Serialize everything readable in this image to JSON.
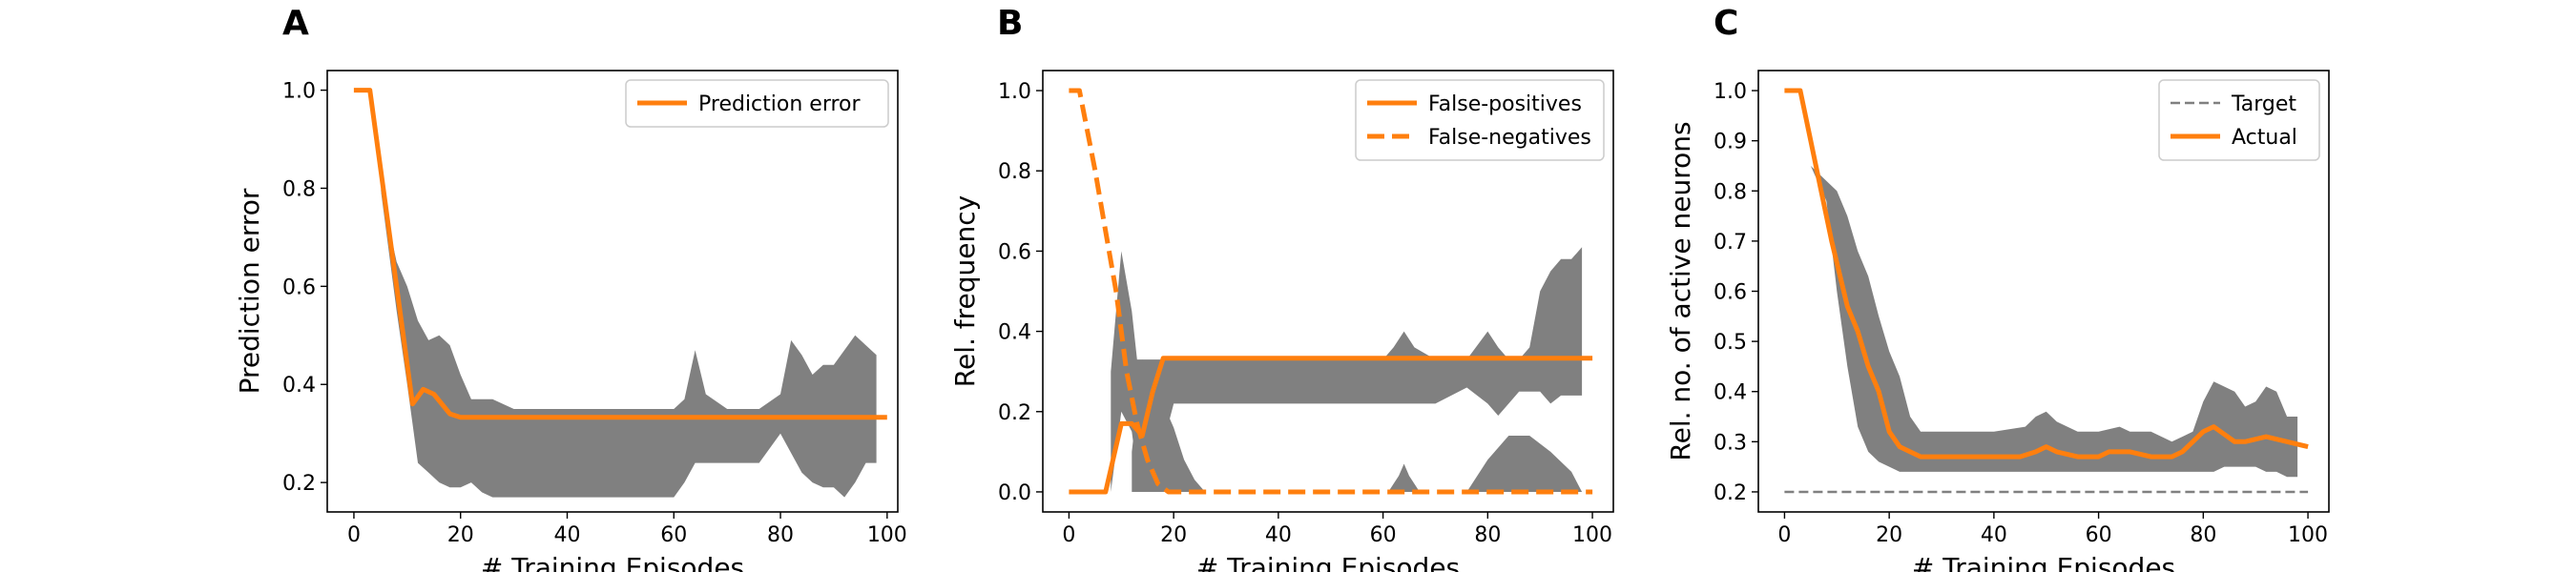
{
  "chart_data": [
    {
      "panel": "A",
      "type": "line",
      "xlabel": "# Training Episodes",
      "ylabel": "Prediction error",
      "xlim": [
        -5,
        102
      ],
      "ylim": [
        0.14,
        1.04
      ],
      "xticks": [
        0,
        20,
        40,
        60,
        80,
        100
      ],
      "yticks": [
        0.2,
        0.4,
        0.6,
        0.8,
        1.0
      ],
      "ytick_format": 1,
      "legend_position": "top-right",
      "colors": {
        "line": "#ff7f0e",
        "band": "#808080"
      },
      "bands": [
        {
          "x": [
            5,
            8,
            10,
            12,
            14,
            16,
            18,
            20,
            22,
            24,
            26,
            30,
            40,
            50,
            60,
            62,
            64,
            66,
            70,
            76,
            80,
            82,
            84,
            86,
            88,
            90,
            92,
            94,
            96,
            98
          ],
          "upper": [
            0.8,
            0.65,
            0.6,
            0.53,
            0.49,
            0.5,
            0.48,
            0.42,
            0.37,
            0.37,
            0.37,
            0.35,
            0.35,
            0.35,
            0.35,
            0.37,
            0.47,
            0.38,
            0.35,
            0.35,
            0.38,
            0.49,
            0.46,
            0.42,
            0.44,
            0.44,
            0.47,
            0.5,
            0.48,
            0.46
          ],
          "lower": [
            0.8,
            0.55,
            0.4,
            0.24,
            0.22,
            0.2,
            0.19,
            0.19,
            0.2,
            0.18,
            0.17,
            0.17,
            0.17,
            0.17,
            0.17,
            0.2,
            0.24,
            0.24,
            0.24,
            0.24,
            0.3,
            0.26,
            0.22,
            0.2,
            0.19,
            0.19,
            0.17,
            0.2,
            0.24,
            0.24
          ]
        }
      ],
      "series": [
        {
          "name": "Prediction error",
          "dash": false,
          "x": [
            0,
            3,
            8,
            11,
            13,
            15,
            18,
            20,
            22,
            25,
            30,
            40,
            50,
            60,
            70,
            80,
            90,
            100
          ],
          "y": [
            1.0,
            1.0,
            0.6,
            0.36,
            0.39,
            0.38,
            0.34,
            0.333,
            0.333,
            0.333,
            0.333,
            0.333,
            0.333,
            0.333,
            0.333,
            0.333,
            0.333,
            0.333
          ]
        }
      ]
    },
    {
      "panel": "B",
      "type": "line",
      "xlabel": "# Training Episodes",
      "ylabel": "Rel. frequency",
      "xlim": [
        -5,
        104
      ],
      "ylim": [
        -0.05,
        1.05
      ],
      "xticks": [
        0,
        20,
        40,
        60,
        80,
        100
      ],
      "yticks": [
        0.0,
        0.2,
        0.4,
        0.6,
        0.8,
        1.0
      ],
      "ytick_format": 1,
      "legend_position": "top-right",
      "colors": {
        "line": "#ff7f0e",
        "band": "#808080"
      },
      "bands": [
        {
          "x": [
            8,
            10,
            12,
            13,
            14,
            16,
            18,
            20,
            30,
            40,
            50,
            60,
            62,
            64,
            66,
            70,
            76,
            80,
            82,
            84,
            86,
            88,
            90,
            92,
            94,
            96,
            98
          ],
          "upper": [
            0.3,
            0.6,
            0.45,
            0.33,
            0.33,
            0.33,
            0.33,
            0.33,
            0.33,
            0.33,
            0.33,
            0.33,
            0.36,
            0.4,
            0.36,
            0.33,
            0.33,
            0.4,
            0.36,
            0.33,
            0.33,
            0.36,
            0.5,
            0.55,
            0.58,
            0.58,
            0.61
          ],
          "lower": [
            0.0,
            0.2,
            0.15,
            0.05,
            0.0,
            0.07,
            0.12,
            0.22,
            0.22,
            0.22,
            0.22,
            0.22,
            0.22,
            0.22,
            0.22,
            0.22,
            0.26,
            0.22,
            0.19,
            0.22,
            0.25,
            0.25,
            0.25,
            0.22,
            0.24,
            0.24,
            0.24
          ]
        },
        {
          "x": [
            12,
            14,
            16,
            18,
            20,
            22,
            24,
            26
          ],
          "upper": [
            0.1,
            0.33,
            0.3,
            0.22,
            0.16,
            0.08,
            0.03,
            0.0
          ],
          "lower": [
            0.0,
            0.0,
            0.0,
            0.0,
            0.0,
            0.0,
            0.0,
            0.0
          ]
        },
        {
          "x": [
            61,
            63,
            64,
            65,
            67
          ],
          "upper": [
            0.0,
            0.04,
            0.07,
            0.04,
            0.0
          ],
          "lower": [
            0.0,
            0.0,
            0.0,
            0.0,
            0.0
          ]
        },
        {
          "x": [
            76,
            80,
            84,
            88,
            92,
            96,
            98
          ],
          "upper": [
            0.0,
            0.08,
            0.14,
            0.14,
            0.1,
            0.05,
            0.0
          ],
          "lower": [
            0.0,
            0.0,
            0.0,
            0.0,
            0.0,
            0.0,
            0.0
          ]
        }
      ],
      "series": [
        {
          "name": "False-positives",
          "dash": false,
          "x": [
            0,
            7,
            10,
            12,
            14,
            16,
            18,
            20,
            40,
            60,
            80,
            100
          ],
          "y": [
            0.0,
            0.0,
            0.17,
            0.17,
            0.14,
            0.25,
            0.333,
            0.333,
            0.333,
            0.333,
            0.333,
            0.333
          ]
        },
        {
          "name": "False-negatives",
          "dash": true,
          "x": [
            0,
            2,
            5,
            7,
            9,
            11,
            13,
            15,
            17,
            19,
            40,
            60,
            80,
            100
          ],
          "y": [
            1.0,
            1.0,
            0.8,
            0.65,
            0.5,
            0.3,
            0.17,
            0.08,
            0.02,
            0.0,
            0.0,
            0.0,
            0.0,
            0.0
          ]
        }
      ]
    },
    {
      "panel": "C",
      "type": "line",
      "xlabel": "# Training Episodes",
      "ylabel": "Rel. no. of active neurons",
      "xlim": [
        -5,
        104
      ],
      "ylim": [
        0.16,
        1.04
      ],
      "xticks": [
        0,
        20,
        40,
        60,
        80,
        100
      ],
      "yticks": [
        0.2,
        0.3,
        0.4,
        0.5,
        0.6,
        0.7,
        0.8,
        0.9,
        1.0
      ],
      "ytick_format": 1,
      "legend_position": "top-right",
      "colors": {
        "line": "#ff7f0e",
        "target": "#808080",
        "band": "#808080"
      },
      "bands": [
        {
          "x": [
            5,
            8,
            10,
            12,
            14,
            16,
            18,
            20,
            22,
            24,
            26,
            30,
            40,
            46,
            48,
            50,
            52,
            56,
            60,
            64,
            66,
            70,
            74,
            78,
            80,
            82,
            84,
            86,
            88,
            90,
            92,
            94,
            96,
            98
          ],
          "upper": [
            0.85,
            0.82,
            0.8,
            0.75,
            0.68,
            0.63,
            0.55,
            0.48,
            0.43,
            0.35,
            0.32,
            0.32,
            0.32,
            0.33,
            0.35,
            0.36,
            0.34,
            0.32,
            0.32,
            0.33,
            0.32,
            0.32,
            0.3,
            0.32,
            0.38,
            0.42,
            0.41,
            0.4,
            0.37,
            0.38,
            0.41,
            0.4,
            0.35,
            0.35
          ],
          "lower": [
            0.85,
            0.78,
            0.6,
            0.45,
            0.33,
            0.28,
            0.26,
            0.25,
            0.24,
            0.24,
            0.24,
            0.24,
            0.24,
            0.24,
            0.24,
            0.24,
            0.24,
            0.24,
            0.24,
            0.24,
            0.24,
            0.24,
            0.24,
            0.24,
            0.24,
            0.24,
            0.25,
            0.25,
            0.25,
            0.25,
            0.24,
            0.24,
            0.23,
            0.23
          ]
        }
      ],
      "series": [
        {
          "name": "Target",
          "dash": "thin",
          "x": [
            0,
            100
          ],
          "y": [
            0.2,
            0.2
          ]
        },
        {
          "name": "Actual",
          "dash": false,
          "x": [
            0,
            3,
            5,
            7,
            9,
            12,
            14,
            16,
            18,
            20,
            22,
            24,
            26,
            30,
            40,
            45,
            48,
            50,
            52,
            56,
            60,
            62,
            64,
            66,
            70,
            74,
            76,
            78,
            80,
            82,
            86,
            88,
            92,
            96,
            100
          ],
          "y": [
            1.0,
            1.0,
            0.9,
            0.8,
            0.7,
            0.57,
            0.52,
            0.45,
            0.4,
            0.32,
            0.29,
            0.28,
            0.27,
            0.27,
            0.27,
            0.27,
            0.28,
            0.29,
            0.28,
            0.27,
            0.27,
            0.28,
            0.28,
            0.28,
            0.27,
            0.27,
            0.28,
            0.3,
            0.32,
            0.33,
            0.3,
            0.3,
            0.31,
            0.3,
            0.29
          ]
        }
      ]
    }
  ]
}
